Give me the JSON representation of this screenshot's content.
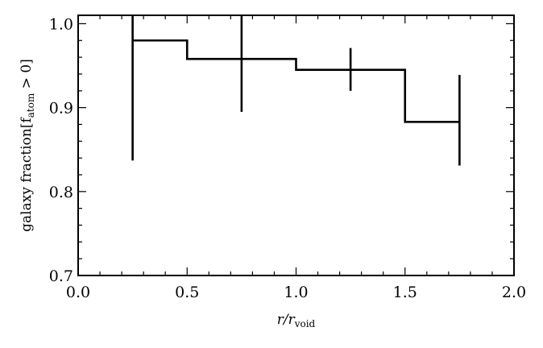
{
  "chart_data": {
    "type": "line",
    "style": "step-histogram-with-error-bars",
    "xlabel_main": "r/r",
    "xlabel_sub": "void",
    "ylabel_main": "galaxy fraction[f",
    "ylabel_sub": "atom",
    "ylabel_tail": " > 0]",
    "xlim": [
      0.0,
      2.0
    ],
    "ylim": [
      0.7,
      1.01
    ],
    "x_ticks": [
      0.0,
      0.5,
      1.0,
      1.5,
      2.0
    ],
    "x_tick_labels": [
      "0.0",
      "0.5",
      "1.0",
      "1.5",
      "2.0"
    ],
    "y_ticks": [
      0.7,
      0.8,
      0.9,
      1.0
    ],
    "y_tick_labels": [
      "0.7",
      "0.8",
      "0.9",
      "1.0"
    ],
    "bin_edges": [
      0.25,
      0.5,
      1.0,
      1.5,
      1.75
    ],
    "values": [
      0.98,
      0.958,
      0.945,
      0.883
    ],
    "error_bars": [
      {
        "x": 0.25,
        "low": 0.837,
        "high": 1.01
      },
      {
        "x": 0.75,
        "low": 0.895,
        "high": 1.01
      },
      {
        "x": 1.25,
        "low": 0.92,
        "high": 0.971
      },
      {
        "x": 1.75,
        "low": 0.831,
        "high": 0.939
      }
    ],
    "grid": false,
    "legend": "none",
    "line_color": "#000000"
  }
}
